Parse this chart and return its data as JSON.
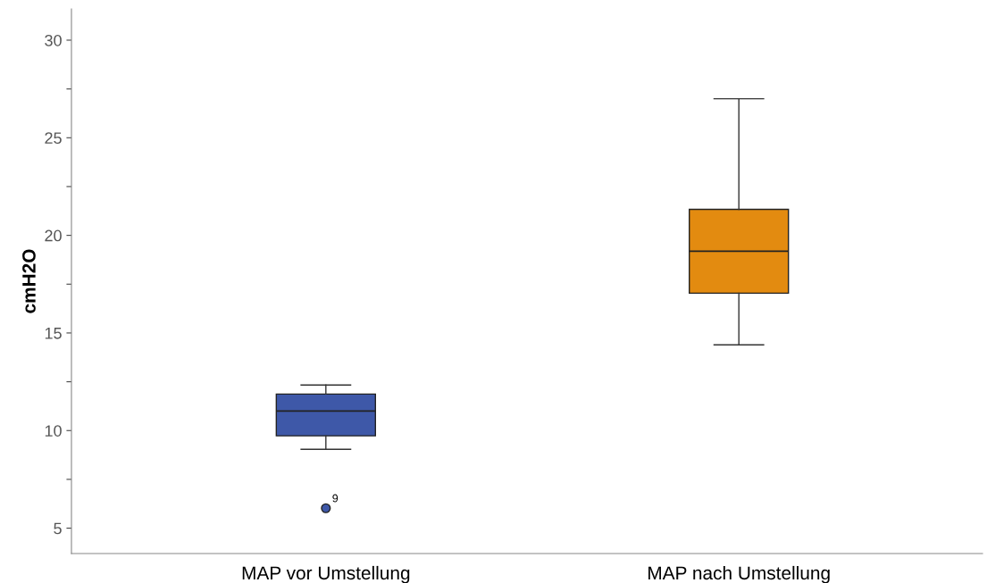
{
  "chart_data": {
    "type": "box",
    "ylabel": "cmH2O",
    "categories": [
      "MAP vor Umstellung",
      "MAP nach Umstellung"
    ],
    "colors": [
      "#3e58a8",
      "#e38b10"
    ],
    "boxes": [
      {
        "low": 9.04,
        "q1": 9.73,
        "median": 11.0,
        "q3": 11.87,
        "high": 12.33,
        "outliers": [
          6.02
        ]
      },
      {
        "low": 14.39,
        "q1": 17.04,
        "median": 19.19,
        "q3": 21.33,
        "high": 27.0
      }
    ],
    "ylim": [
      3.7,
      31.6
    ],
    "yticks": [
      5,
      {
        "value": 7.5,
        "label": null
      },
      10,
      {
        "value": 12.5,
        "label": null
      },
      15,
      {
        "value": 17.5,
        "label": null
      },
      20,
      {
        "value": 22.5,
        "label": null
      },
      25,
      {
        "value": 27.5,
        "label": null
      },
      30
    ],
    "annotations": [
      "9"
    ],
    "grid": false,
    "legend": false
  }
}
